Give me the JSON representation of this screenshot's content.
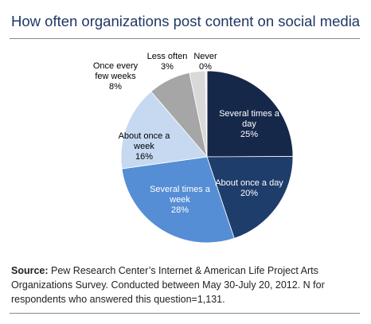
{
  "header": {
    "title": "How often organizations post content on social media"
  },
  "chart_data": {
    "type": "pie",
    "title": "How often organizations post content on social media",
    "slices": [
      {
        "label_lines": [
          "Several times a",
          "day"
        ],
        "value": 25,
        "value_text": "25%",
        "color": "#16284a",
        "text_color": "#ffffff"
      },
      {
        "label_lines": [
          "About once a day"
        ],
        "value": 20,
        "value_text": "20%",
        "color": "#1f3d6b",
        "text_color": "#ffffff"
      },
      {
        "label_lines": [
          "Several times a",
          "week"
        ],
        "value": 28,
        "value_text": "28%",
        "color": "#558ed5",
        "text_color": "#ffffff"
      },
      {
        "label_lines": [
          "About once a",
          "week"
        ],
        "value": 16,
        "value_text": "16%",
        "color": "#c6d9f1",
        "text_color": "#000000"
      },
      {
        "label_lines": [
          "Once every",
          "few weeks"
        ],
        "value": 8,
        "value_text": "8%",
        "color": "#a6a6a6",
        "text_color": "#000000"
      },
      {
        "label_lines": [
          "Less often"
        ],
        "value": 3,
        "value_text": "3%",
        "color": "#d9d9d9",
        "text_color": "#000000"
      },
      {
        "label_lines": [
          "Never"
        ],
        "value": 0.3,
        "value_text": "0%",
        "color": "#f2f2f2",
        "text_color": "#000000"
      }
    ]
  },
  "source": {
    "label": "Source:",
    "text": " Pew Research Center’s Internet & American Life Project Arts Organizations Survey. Conducted between May 30-July 20, 2012. N for respondents who answered this question=1,131."
  }
}
